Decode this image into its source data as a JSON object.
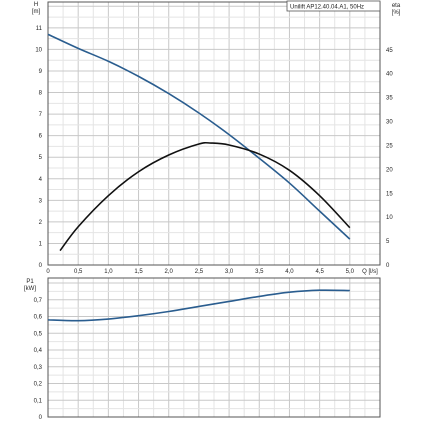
{
  "chart_data": [
    {
      "type": "line",
      "title": "Unilift AP12.40.04.A1, 50Hz",
      "xlabel": "Q [l/s]",
      "x_ticks": [
        "0",
        "0,5",
        "1,0",
        "1,5",
        "2,0",
        "2,5",
        "3,0",
        "3,5",
        "4,0",
        "4,5",
        "5,0"
      ],
      "xlim": [
        0,
        5.5
      ],
      "y_left": {
        "label_line1": "H",
        "label_line2": "[m]",
        "ylim": [
          0,
          12.2
        ],
        "ticks": [
          "0",
          "1",
          "2",
          "3",
          "4",
          "5",
          "6",
          "7",
          "8",
          "9",
          "10",
          "11"
        ]
      },
      "y_right": {
        "label_line1": "eta",
        "label_line2": "[%]",
        "ylim": [
          0,
          55
        ],
        "ticks": [
          "0",
          "5",
          "10",
          "15",
          "20",
          "25",
          "30",
          "35",
          "40",
          "45"
        ]
      },
      "grid": true,
      "series": [
        {
          "axis": "left",
          "color": "#2a5d8f",
          "x": [
            0,
            0.5,
            1.0,
            1.5,
            2.0,
            2.5,
            3.0,
            3.5,
            4.0,
            4.5,
            5.0
          ],
          "y": [
            10.7,
            10.05,
            9.45,
            8.75,
            7.95,
            7.05,
            6.05,
            4.95,
            3.8,
            2.5,
            1.2
          ]
        },
        {
          "axis": "right",
          "color": "#111111",
          "x": [
            0.2,
            0.5,
            1.0,
            1.5,
            2.0,
            2.5,
            2.7,
            3.0,
            3.5,
            4.0,
            4.5,
            5.0
          ],
          "y": [
            3,
            8,
            14.5,
            19.5,
            23,
            25.3,
            25.5,
            25.1,
            23.2,
            19.8,
            14.5,
            7.8
          ]
        }
      ]
    },
    {
      "type": "line",
      "xlim": [
        0,
        5.5
      ],
      "y_left": {
        "label_line1": "P1",
        "label_line2": "[kW]",
        "ylim": [
          0,
          0.83
        ],
        "ticks": [
          "0",
          "0,1",
          "0,2",
          "0,3",
          "0,4",
          "0,5",
          "0,6",
          "0,7"
        ]
      },
      "grid": true,
      "series": [
        {
          "axis": "left",
          "color": "#2a5d8f",
          "x": [
            0,
            0.5,
            1.0,
            1.5,
            2.0,
            2.5,
            3.0,
            3.5,
            4.0,
            4.5,
            5.0
          ],
          "y": [
            0.58,
            0.575,
            0.585,
            0.605,
            0.63,
            0.66,
            0.69,
            0.72,
            0.745,
            0.757,
            0.755
          ]
        }
      ]
    }
  ]
}
